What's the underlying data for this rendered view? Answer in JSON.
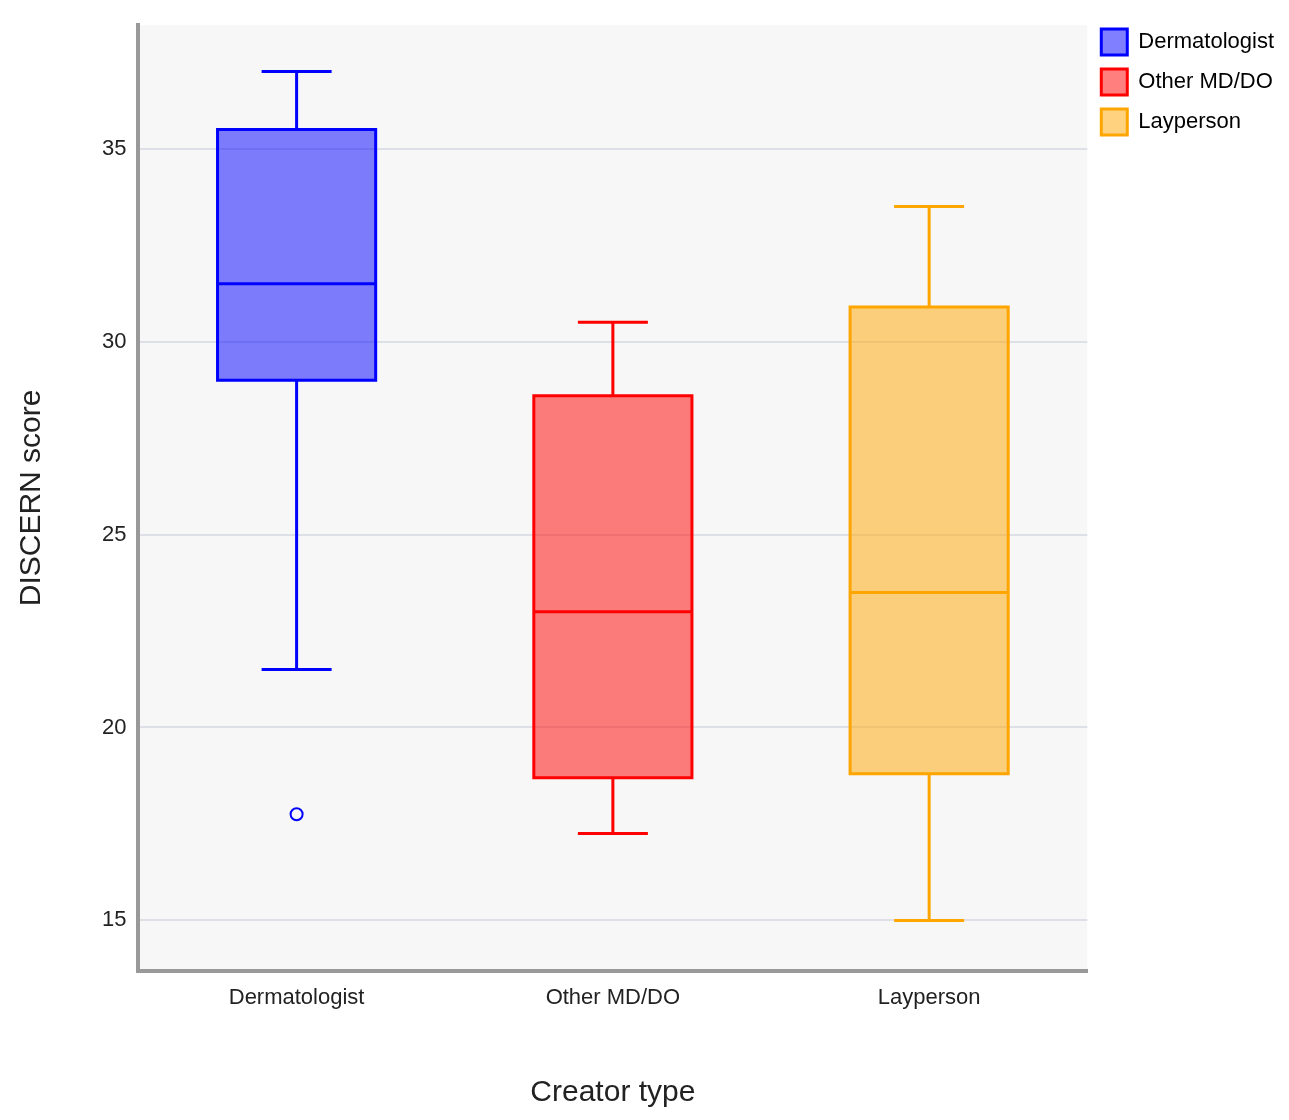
{
  "chart_data": {
    "type": "box",
    "xlabel": "Creator type",
    "ylabel": "DISCERN score",
    "categories": [
      "Dermatologist",
      "Other MD/DO",
      "Layperson"
    ],
    "series": [
      {
        "name": "Dermatologist",
        "color": "#0000ff",
        "boxes": [
          {
            "low": 21.5,
            "q1": 29.0,
            "median": 31.5,
            "q3": 35.5,
            "high": 37.0,
            "outliers": [
              17.75
            ]
          },
          null,
          null
        ]
      },
      {
        "name": "Other MD/DO",
        "color": "#ff0000",
        "boxes": [
          null,
          {
            "low": 17.25,
            "q1": 18.7,
            "median": 23.0,
            "q3": 28.6,
            "high": 30.5
          },
          null
        ]
      },
      {
        "name": "Layperson",
        "color": "#ffa500",
        "boxes": [
          null,
          null,
          {
            "low": 15.0,
            "q1": 18.8,
            "median": 23.5,
            "q3": 30.9,
            "high": 33.5
          }
        ]
      }
    ],
    "ylim": [
      13.7,
      38.2
    ],
    "yticks": [
      15,
      20,
      25,
      30,
      35
    ],
    "grid": "y",
    "legend": "top right"
  }
}
